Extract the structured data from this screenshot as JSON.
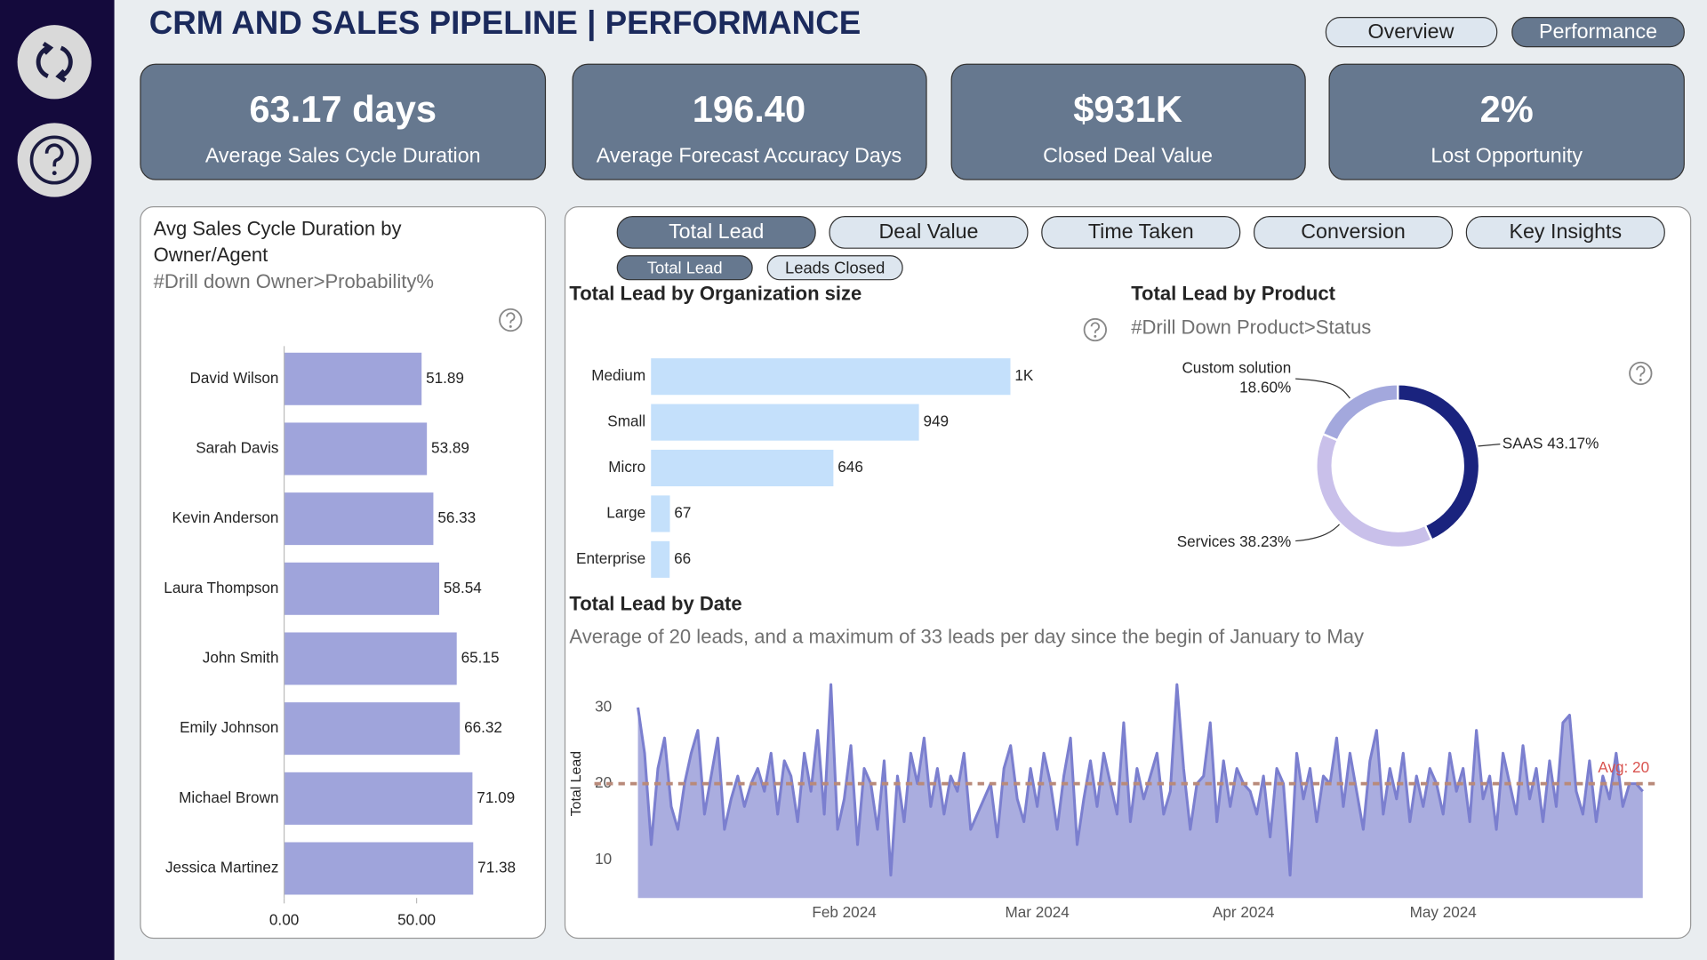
{
  "header": {
    "title": "CRM AND SALES PIPELINE | PERFORMANCE",
    "nav": [
      "Overview",
      "Performance"
    ]
  },
  "kpis": [
    {
      "value": "63.17 days",
      "label": "Average Sales Cycle Duration"
    },
    {
      "value": "196.40",
      "label": "Average Forecast Accuracy Days"
    },
    {
      "value": "$931K",
      "label": "Closed Deal Value"
    },
    {
      "value": "2%",
      "label": "Lost Opportunity"
    }
  ],
  "tabs": [
    "Total Lead",
    "Deal Value",
    "Time Taken",
    "Conversion",
    "Key Insights"
  ],
  "subtabs": [
    "Total Lead",
    "Leads Closed"
  ],
  "chart_data": [
    {
      "type": "bar",
      "orientation": "horizontal",
      "title": "Avg Sales Cycle Duration by Owner/Agent",
      "subtitle": "#Drill down Owner>Probability%",
      "categories": [
        "David Wilson",
        "Sarah Davis",
        "Kevin Anderson",
        "Laura Thompson",
        "John Smith",
        "Emily Johnson",
        "Michael Brown",
        "Jessica Martinez"
      ],
      "values": [
        51.89,
        53.89,
        56.33,
        58.54,
        65.15,
        66.32,
        71.09,
        71.38
      ],
      "color": "#9fa4db",
      "xlim": [
        0,
        90
      ],
      "xticks": [
        {
          "value": 0,
          "label": "0.00"
        },
        {
          "value": 50,
          "label": "50.00"
        }
      ]
    },
    {
      "type": "bar",
      "orientation": "horizontal",
      "title": "Total Lead by Organization size",
      "categories": [
        "Medium",
        "Small",
        "Micro",
        "Large",
        "Enterprise"
      ],
      "values": [
        1273,
        949,
        646,
        67,
        66
      ],
      "value_labels": [
        "1K",
        "949",
        "646",
        "67",
        "66"
      ],
      "color": "#c4e0fb",
      "xlim": [
        0,
        1500
      ]
    },
    {
      "type": "pie",
      "title": "Total Lead by Product",
      "subtitle": "#Drill Down Product>Status",
      "categories": [
        "SAAS",
        "Services",
        "Custom solution"
      ],
      "values": [
        43.17,
        38.23,
        18.6
      ],
      "value_labels": [
        "43.17%",
        "38.23%",
        "18.60%"
      ],
      "colors": [
        "#1a237e",
        "#c9c0ea",
        "#a3a8dd"
      ],
      "hole": 0.8
    },
    {
      "type": "area",
      "title": "Total Lead by Date",
      "subtitle": "Average of 20 leads, and  a maximum of 33 leads  per day since the begin of January to May",
      "ylabel": "Total Lead",
      "color": "#7b7fcf",
      "fill": "#aaaddf",
      "xlim": [
        0,
        151
      ],
      "xticks": [
        {
          "value": 31,
          "label": "Feb 2024"
        },
        {
          "value": 60,
          "label": "Mar 2024"
        },
        {
          "value": 91,
          "label": "Apr 2024"
        },
        {
          "value": 121,
          "label": "May 2024"
        }
      ],
      "ylim": [
        5,
        34
      ],
      "yticks": [
        10,
        20,
        30
      ],
      "reference_line": {
        "value": 20,
        "label": "Avg: 20"
      },
      "values": [
        30,
        24,
        12,
        22,
        26,
        17,
        14,
        20,
        24,
        27,
        16,
        21,
        26,
        14,
        18,
        21,
        17,
        20,
        22,
        19,
        24,
        16,
        23,
        21,
        15,
        24,
        19,
        27,
        16,
        33,
        14,
        18,
        25,
        12,
        22,
        20,
        14,
        23,
        8,
        21,
        15,
        24,
        20,
        26,
        17,
        22,
        16,
        21,
        19,
        24,
        14,
        16,
        18,
        20,
        13,
        22,
        25,
        18,
        15,
        22,
        17,
        24,
        20,
        14,
        21,
        26,
        12,
        18,
        23,
        17,
        24,
        20,
        16,
        28,
        15,
        22,
        18,
        21,
        24,
        16,
        19,
        33,
        22,
        14,
        20,
        21,
        28,
        15,
        23,
        17,
        22,
        20,
        19,
        16,
        21,
        13,
        22,
        20,
        8,
        24,
        18,
        22,
        15,
        21,
        20,
        26,
        17,
        24,
        19,
        14,
        23,
        27,
        16,
        22,
        18,
        24,
        15,
        21,
        17,
        22,
        20,
        16,
        24,
        19,
        22,
        15,
        27,
        18,
        21,
        14,
        24,
        20,
        16,
        25,
        18,
        22,
        15,
        23,
        17,
        28,
        29,
        19,
        16,
        23,
        15,
        21,
        18,
        24,
        17,
        20,
        20,
        19
      ]
    }
  ]
}
